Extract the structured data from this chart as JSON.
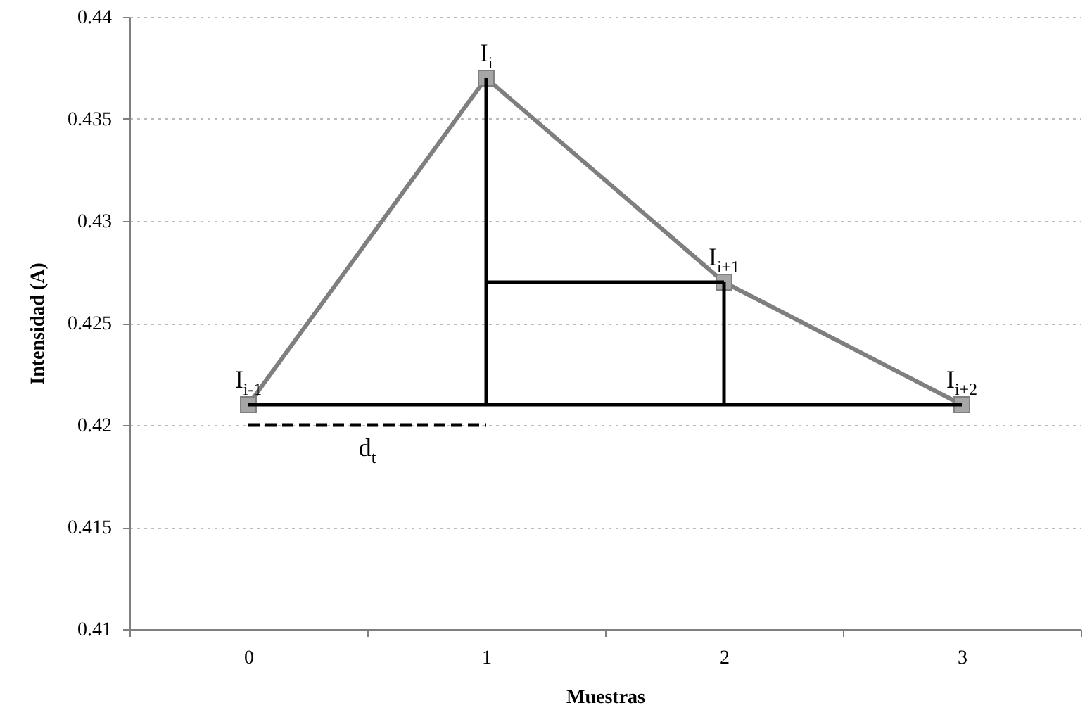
{
  "chart_data": {
    "type": "line",
    "xlabel": "Muestras",
    "ylabel": "Intensidad (A)",
    "x": [
      0,
      1,
      2,
      3
    ],
    "series": [
      {
        "color": "#7f7f7f",
        "values": [
          0.421,
          0.437,
          0.427,
          0.421
        ]
      },
      {
        "x": [
          1,
          1
        ],
        "values": [
          0.421,
          0.437
        ],
        "color": "#000000",
        "marker": "none"
      },
      {
        "x": [
          1,
          2
        ],
        "values": [
          0.427,
          0.427
        ],
        "color": "#000000",
        "marker": "none"
      },
      {
        "x": [
          2,
          2
        ],
        "values": [
          0.421,
          0.427
        ],
        "color": "#000000",
        "marker": "none"
      },
      {
        "x": [
          0,
          3
        ],
        "values": [
          0.421,
          0.421
        ],
        "color": "#000000",
        "marker": "none"
      },
      {
        "x": [
          0,
          1
        ],
        "values": [
          0.42,
          0.42
        ],
        "color": "#000000",
        "marker": "none",
        "line_style": "dashed"
      }
    ],
    "xlim": [
      -0.5,
      3.5
    ],
    "xticks": [
      {
        "value": -0.5,
        "label": null
      },
      0,
      {
        "value": 0.5,
        "label": null
      },
      1,
      {
        "value": 1.5,
        "label": null
      },
      2,
      {
        "value": 2.5,
        "label": null
      },
      3,
      {
        "value": 3.5,
        "label": null
      }
    ],
    "ylim": [
      0.41,
      0.44
    ],
    "yticks": [
      0.41,
      0.415,
      0.42,
      0.425,
      0.43,
      0.435,
      0.44
    ],
    "grid": "y",
    "marker": "square",
    "line_style": "solid",
    "annotations": [
      {
        "text": "I$_{i-1}$",
        "x": 0,
        "y": 0.421
      },
      {
        "text": "I$_{i}$",
        "x": 1,
        "y": 0.437
      },
      {
        "text": "I$_{i+1}$",
        "x": 2,
        "y": 0.427
      },
      {
        "text": "I$_{i+2}$",
        "x": 3,
        "y": 0.421
      },
      {
        "text": "d$_{t}$",
        "x": 0.5,
        "y": 0.42
      }
    ]
  }
}
